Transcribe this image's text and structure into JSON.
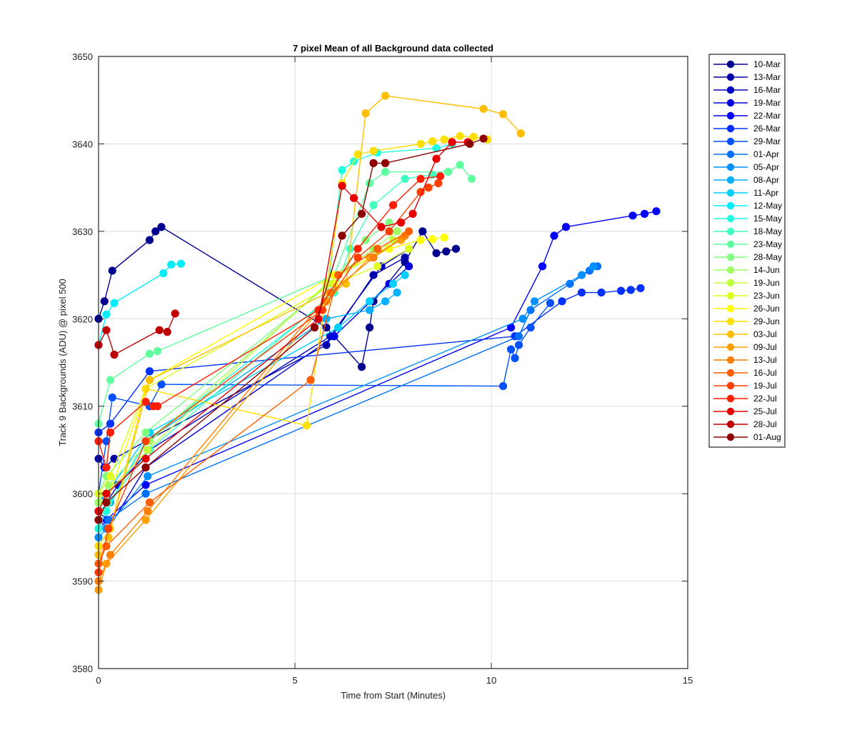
{
  "chart_data": {
    "type": "line",
    "title": "7 pixel Mean of all Background data collected",
    "xlabel": "Time from Start (Minutes)",
    "ylabel": "Track 9 Backgrounds (ADU) @ pixel 500",
    "xlim": [
      0,
      15
    ],
    "ylim": [
      3580,
      3650
    ],
    "xticks": [
      0,
      5,
      10,
      15
    ],
    "yticks": [
      3580,
      3590,
      3600,
      3610,
      3620,
      3630,
      3640,
      3650
    ],
    "grid": true,
    "legend_position": "outside-right",
    "series": [
      {
        "name": "10-Mar",
        "color": "#00008f",
        "x": [
          0,
          0.15,
          0.35,
          1.3,
          1.45,
          1.6,
          5.8,
          6.7,
          6.9,
          7.0,
          7.8,
          8.25,
          8.6,
          8.85,
          9.1
        ],
        "y": [
          3620,
          3622,
          3625.5,
          3629,
          3630,
          3630.5,
          3619,
          3614.5,
          3619,
          3622,
          3626.5,
          3630,
          3627.5,
          3627.7,
          3628
        ]
      },
      {
        "name": "13-Mar",
        "color": "#0000a8",
        "x": [
          0,
          0.15,
          0.4,
          1.2,
          5.8,
          7.0,
          7.8
        ],
        "y": [
          3604,
          3603,
          3604,
          3606,
          3617,
          3625,
          3627
        ]
      },
      {
        "name": "16-Mar",
        "color": "#0000c4",
        "x": [
          0,
          0.2,
          0.5,
          1.3,
          5.9,
          7.2,
          7.9
        ],
        "y": [
          3600,
          3599,
          3601,
          3605,
          3618,
          3626,
          3628
        ]
      },
      {
        "name": "19-Mar",
        "color": "#0000e0",
        "x": [
          0,
          0.25,
          1.2,
          6.0,
          7.4,
          7.9
        ],
        "y": [
          3597,
          3596,
          3603,
          3618,
          3624,
          3626
        ]
      },
      {
        "name": "22-Mar",
        "color": "#0000ff",
        "x": [
          0,
          0.2,
          1.2,
          10.5,
          11.3,
          11.6,
          11.9,
          13.6,
          13.9,
          14.2
        ],
        "y": [
          3598,
          3597,
          3601,
          3619,
          3626,
          3629.5,
          3630.5,
          3631.8,
          3632,
          3632.3
        ]
      },
      {
        "name": "26-Mar",
        "color": "#0030ff",
        "x": [
          0,
          0.3,
          1.3,
          10.6,
          11.8,
          12.3,
          12.8,
          13.3,
          13.55,
          13.8
        ],
        "y": [
          3607,
          3608,
          3614,
          3618,
          3622,
          3623,
          3623,
          3623.2,
          3623.3,
          3623.5
        ]
      },
      {
        "name": "29-Mar",
        "color": "#0050ff",
        "x": [
          0,
          0.2,
          0.35,
          1.3,
          1.6,
          10.3,
          10.5,
          10.6,
          10.7,
          11.0,
          11.5
        ],
        "y": [
          3600,
          3606,
          3611,
          3610,
          3612.5,
          3612.3,
          3616.5,
          3615.5,
          3617,
          3619,
          3621.8
        ]
      },
      {
        "name": "01-Apr",
        "color": "#0070ff",
        "x": [
          0,
          0.25,
          1.2,
          10.7,
          11.0,
          12.0,
          12.5,
          12.7
        ],
        "y": [
          3596,
          3597,
          3600,
          3618,
          3621,
          3624,
          3625.5,
          3626
        ]
      },
      {
        "name": "05-Apr",
        "color": "#0090ff",
        "x": [
          0,
          0.2,
          1.25,
          10.8,
          11.1,
          12.3,
          12.6
        ],
        "y": [
          3595,
          3596,
          3602,
          3620,
          3622,
          3625,
          3626
        ]
      },
      {
        "name": "08-Apr",
        "color": "#00b0ff",
        "x": [
          0,
          0.3,
          1.2,
          5.8,
          6.9,
          7.3,
          7.6
        ],
        "y": [
          3598,
          3599,
          3606,
          3620,
          3621,
          3622,
          3623
        ]
      },
      {
        "name": "11-Apr",
        "color": "#00cfff",
        "x": [
          0,
          0.2,
          1.3,
          6.1,
          6.9,
          7.5,
          7.8
        ],
        "y": [
          3599,
          3600,
          3607,
          3619,
          3622,
          3624,
          3625
        ]
      },
      {
        "name": "12-May",
        "color": "#00efff",
        "x": [
          0,
          0.2,
          0.4,
          1.65,
          1.85,
          2.1
        ],
        "y": [
          3617,
          3620.5,
          3621.8,
          3625.2,
          3626.2,
          3626.3
        ]
      },
      {
        "name": "15-May",
        "color": "#20ffdf",
        "x": [
          0,
          0.2,
          1.2,
          5.8,
          6.2,
          6.5,
          7.1,
          8.6,
          9.0
        ],
        "y": [
          3596,
          3598,
          3606,
          3622,
          3637,
          3638,
          3639,
          3639.5,
          3640
        ]
      },
      {
        "name": "18-May",
        "color": "#40ffbf",
        "x": [
          0,
          0.25,
          1.3,
          6.0,
          6.4,
          7.0,
          7.8,
          8.5
        ],
        "y": [
          3597,
          3599,
          3605,
          3623,
          3628,
          3633,
          3636,
          3636.5
        ]
      },
      {
        "name": "23-May",
        "color": "#60ff9f",
        "x": [
          0,
          0.3,
          1.3,
          1.5,
          6.0,
          6.9,
          7.3,
          8.9,
          9.2,
          9.5
        ],
        "y": [
          3608,
          3613,
          3616,
          3616.3,
          3625,
          3635.5,
          3636.8,
          3636.8,
          3637.6,
          3636
        ]
      },
      {
        "name": "28-May",
        "color": "#80ff80",
        "x": [
          0,
          0.2,
          1.2,
          5.9,
          6.8,
          7.4
        ],
        "y": [
          3600,
          3602,
          3607,
          3624,
          3629,
          3631
        ]
      },
      {
        "name": "14-Jun",
        "color": "#9fff60",
        "x": [
          0,
          0.25,
          1.3,
          6.1,
          7.0,
          7.6
        ],
        "y": [
          3599,
          3601,
          3606,
          3625,
          3628,
          3630
        ]
      },
      {
        "name": "19-Jun",
        "color": "#bfff40",
        "x": [
          0,
          0.2,
          1.25,
          5.8,
          6.9,
          7.5
        ],
        "y": [
          3598,
          3600,
          3605,
          3624,
          3627,
          3629
        ]
      },
      {
        "name": "23-Jun",
        "color": "#dfff20",
        "x": [
          0,
          0.3,
          1.2,
          6.0,
          7.1,
          7.9
        ],
        "y": [
          3600,
          3602,
          3612,
          3624,
          3626,
          3628
        ]
      },
      {
        "name": "26-Jun",
        "color": "#ffff00",
        "x": [
          0,
          0.2,
          1.3,
          6.0,
          7.4,
          8.2,
          8.5,
          8.8
        ],
        "y": [
          3597,
          3599,
          3613,
          3625,
          3628,
          3629,
          3629.1,
          3629.3
        ]
      },
      {
        "name": "29-Jun",
        "color": "#ffdf00",
        "x": [
          0,
          0.3,
          1.2,
          5.3,
          6.2,
          6.6,
          7.0,
          8.2,
          8.5,
          8.8,
          9.2,
          9.55,
          9.9
        ],
        "y": [
          3594,
          3596,
          3612,
          3607.8,
          3635.5,
          3638.8,
          3639.2,
          3640,
          3640.3,
          3640.5,
          3640.9,
          3640.8,
          3640.5
        ]
      },
      {
        "name": "03-Jul",
        "color": "#ffbf00",
        "x": [
          0,
          0.25,
          1.3,
          6.3,
          6.8,
          7.3,
          9.8,
          10.3,
          10.75
        ],
        "y": [
          3593,
          3595,
          3613,
          3624,
          3643.5,
          3645.5,
          3644,
          3643.4,
          3641.2
        ]
      },
      {
        "name": "09-Jul",
        "color": "#ff9f00",
        "x": [
          0,
          0.2,
          1.2,
          5.8,
          6.9,
          7.7
        ],
        "y": [
          3589,
          3592,
          3597,
          3622,
          3627,
          3629
        ]
      },
      {
        "name": "13-Jul",
        "color": "#ff7f00",
        "x": [
          0,
          0.3,
          1.25,
          5.9,
          7.0,
          7.8
        ],
        "y": [
          3590,
          3593,
          3598,
          3623,
          3627,
          3629.5
        ]
      },
      {
        "name": "16-Jul",
        "color": "#ff5f00",
        "x": [
          0,
          0.2,
          1.3,
          5.4,
          6.1,
          7.1,
          7.9
        ],
        "y": [
          3592,
          3594,
          3599,
          3613,
          3625,
          3628,
          3630
        ]
      },
      {
        "name": "19-Jul",
        "color": "#ff3f00",
        "x": [
          0,
          0.25,
          1.2,
          5.7,
          6.6,
          7.4,
          8.2,
          8.4,
          8.65
        ],
        "y": [
          3591,
          3596,
          3606,
          3621,
          3627,
          3630,
          3634.5,
          3635,
          3635.5
        ]
      },
      {
        "name": "22-Jul",
        "color": "#ff1f00",
        "x": [
          0,
          0.2,
          0.3,
          1.2,
          1.4,
          1.5,
          5.6,
          6.6,
          7.5,
          8.2,
          8.7
        ],
        "y": [
          3606,
          3603,
          3607,
          3610.5,
          3610,
          3610,
          3621,
          3628,
          3633,
          3636,
          3636.3
        ]
      },
      {
        "name": "25-Jul",
        "color": "#e80000",
        "x": [
          0,
          0.2,
          1.2,
          5.6,
          6.2,
          6.5,
          7.2,
          7.7,
          8.0,
          8.6,
          9.0,
          9.4
        ],
        "y": [
          3598,
          3600,
          3604,
          3620,
          3635.2,
          3633.8,
          3630.5,
          3631,
          3632,
          3638.3,
          3640.2,
          3640.2
        ]
      },
      {
        "name": "28-Jul",
        "color": "#c00000",
        "x": [
          0,
          0.2,
          0.4,
          1.55,
          1.75,
          1.95
        ],
        "y": [
          3617,
          3618.7,
          3615.9,
          3618.7,
          3618.5,
          3620.6
        ]
      },
      {
        "name": "01-Aug",
        "color": "#8f0000",
        "x": [
          0,
          0.2,
          1.2,
          5.5,
          6.2,
          6.7,
          7.0,
          7.3,
          9.45,
          9.8
        ],
        "y": [
          3597,
          3599,
          3603,
          3619,
          3629.5,
          3632,
          3637.8,
          3637.8,
          3640,
          3640.6
        ]
      }
    ]
  }
}
